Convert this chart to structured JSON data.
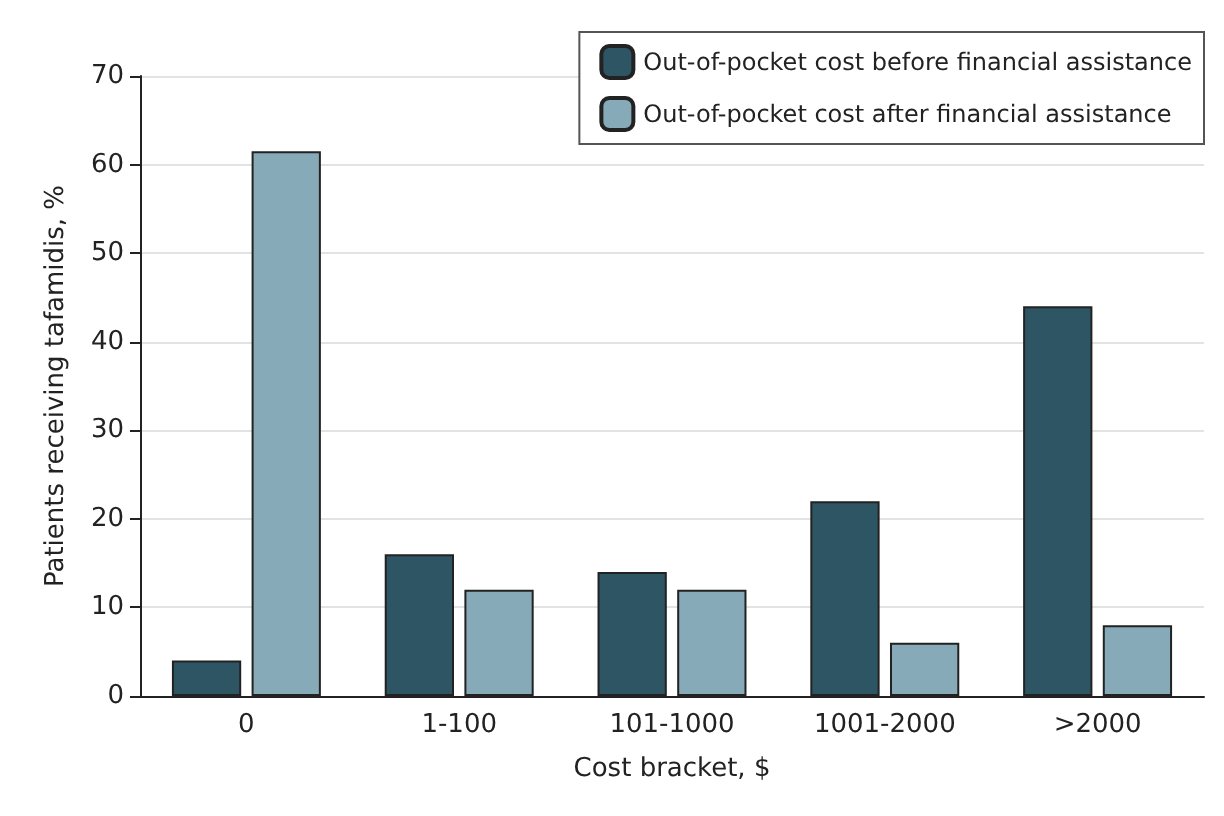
{
  "chart_data": {
    "type": "bar",
    "xlabel": "Cost bracket, $",
    "ylabel": "Patients receiving tafamidis, %",
    "categories": [
      "0",
      "1-100",
      "101-1000",
      "1001-2000",
      ">2000"
    ],
    "series": [
      {
        "name": "Out-of-pocket cost before financial assistance",
        "color": "#2e5563",
        "values": [
          4,
          16,
          14,
          22,
          44
        ]
      },
      {
        "name": "Out-of-pocket cost after financial assistance",
        "color": "#86aab8",
        "values": [
          61.5,
          12,
          12,
          6,
          8
        ]
      }
    ],
    "ylim": [
      0,
      70
    ],
    "yticks": [
      0,
      10,
      20,
      30,
      40,
      50,
      60,
      70
    ],
    "grid": "y",
    "legend": "top right"
  }
}
